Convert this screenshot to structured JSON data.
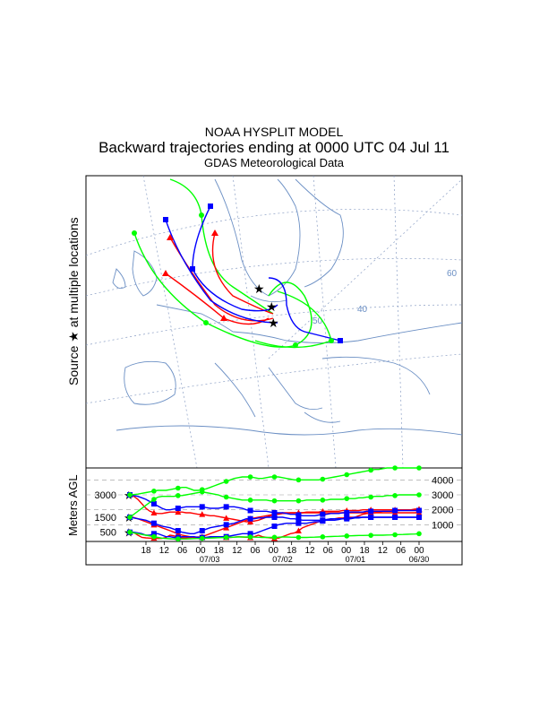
{
  "header": {
    "model": "NOAA HYSPLIT MODEL",
    "description": "Backward trajectories ending at 0000 UTC 04 Jul 11",
    "met_data": "GDAS Meteorological Data"
  },
  "side_label": {
    "text_before": "Source",
    "star_glyph": "★",
    "text_after": "at multiple locations"
  },
  "colors": {
    "red": "#ff0000",
    "blue": "#0000ff",
    "green": "#00ff00",
    "map": "#6b8fc4",
    "grid": "#8a9ec4"
  },
  "chart_data": {
    "type": "line",
    "title": "Backward trajectories ending at 0000 UTC 04 Jul 11",
    "ylabel": "Meters AGL",
    "ylim": [
      0,
      4800
    ],
    "y_ticks": [
      1000,
      2000,
      3000,
      4000
    ],
    "source_heights": [
      500,
      1500,
      3000
    ],
    "x_tick_labels": [
      "18",
      "12",
      "06",
      "00",
      "18",
      "12",
      "06",
      "00",
      "18",
      "12",
      "06",
      "00",
      "18",
      "12",
      "06",
      "00"
    ],
    "date_labels": [
      "07/03",
      "07/02",
      "07/01",
      "06/30"
    ],
    "map_grid_labels": [
      "50",
      "40",
      "60"
    ],
    "series": [
      {
        "name": "red-500m",
        "color": "red",
        "values": [
          500,
          480,
          300,
          150,
          120,
          100,
          110,
          80,
          90,
          150,
          300,
          260,
          150,
          120,
          130,
          150,
          160,
          180,
          150,
          120,
          140,
          160,
          180,
          200,
          160,
          150,
          170,
          200,
          180,
          160,
          150,
          200,
          300,
          200,
          150,
          120,
          100,
          100,
          200,
          300,
          400,
          450,
          600,
          800,
          900,
          1000,
          1100,
          1200,
          1300,
          1300,
          1350,
          1400,
          1450,
          1450,
          1500,
          1500,
          1500,
          1600,
          1700,
          1750,
          1800,
          1800,
          1850,
          1900,
          1900,
          1900,
          1950,
          1950,
          2000,
          2000,
          2000,
          2050,
          2050
        ]
      },
      {
        "name": "red-1500m",
        "color": "red",
        "values": [
          1500,
          1480,
          1400,
          1300,
          1200,
          1100,
          1000,
          900,
          800,
          700,
          600,
          500,
          400,
          300,
          250,
          200,
          150,
          150,
          200,
          300,
          400,
          500,
          600,
          700,
          800,
          900,
          1000,
          1100,
          1200,
          1300,
          1400,
          1450,
          1500,
          1550,
          1600,
          1650,
          1700,
          1700,
          1750,
          1750,
          1800,
          1800,
          1800,
          1800,
          1850,
          1850,
          1850,
          1850,
          1900,
          1900,
          1900,
          1900,
          1900,
          1950,
          1950,
          1950,
          1950,
          1950,
          2000,
          2000,
          2000,
          2000,
          2000,
          2000,
          2000,
          2000,
          2000,
          2000,
          2000,
          2000,
          2000,
          2000,
          2000
        ]
      },
      {
        "name": "red-3000m",
        "color": "red",
        "values": [
          3000,
          2900,
          2700,
          2400,
          2100,
          1900,
          1800,
          1750,
          1750,
          1800,
          1850,
          1850,
          1850,
          1850,
          1800,
          1800,
          1750,
          1700,
          1700,
          1650,
          1600,
          1600,
          1550,
          1500,
          1450,
          1400,
          1350,
          1300,
          1250,
          1200,
          1200,
          1250,
          1300,
          1400,
          1500,
          1600,
          1700,
          1750,
          1800,
          1800,
          1800,
          1800,
          1800,
          1800,
          1800,
          1800,
          1800,
          1800,
          1800,
          1800,
          1800,
          1800,
          1800,
          1800,
          1800,
          1800,
          1800,
          1800,
          1800,
          1800,
          1800,
          1800,
          1800,
          1800,
          1800,
          1800,
          1800,
          1800,
          1800,
          1800,
          1800,
          1800,
          1800
        ]
      },
      {
        "name": "blue-500m",
        "color": "blue",
        "values": [
          500,
          500,
          450,
          400,
          300,
          300,
          400,
          400,
          300,
          200,
          200,
          150,
          150,
          200,
          200,
          200,
          200,
          150,
          150,
          150,
          200,
          200,
          200,
          200,
          200,
          250,
          300,
          350,
          400,
          400,
          400,
          400,
          500,
          600,
          700,
          800,
          900,
          1000,
          1050,
          1100,
          1100,
          1100,
          1100,
          1100,
          1100,
          1150,
          1200,
          1200,
          1250,
          1300,
          1300,
          1300,
          1350,
          1400,
          1400,
          1400,
          1450,
          1450,
          1500,
          1500,
          1500,
          1500,
          1500,
          1500,
          1500,
          1500,
          1500,
          1500,
          1500,
          1500,
          1500,
          1500,
          1500
        ]
      },
      {
        "name": "blue-1500m",
        "color": "blue",
        "values": [
          1500,
          1450,
          1400,
          1350,
          1300,
          1200,
          1100,
          1000,
          900,
          850,
          800,
          700,
          600,
          500,
          450,
          400,
          400,
          500,
          600,
          700,
          800,
          850,
          900,
          950,
          1000,
          1050,
          1100,
          1200,
          1300,
          1400,
          1400,
          1400,
          1450,
          1450,
          1500,
          1500,
          1500,
          1500,
          1500,
          1450,
          1400,
          1400,
          1350,
          1300,
          1300,
          1300,
          1300,
          1300,
          1300,
          1350,
          1400,
          1400,
          1400,
          1400,
          1450,
          1450,
          1500,
          1500,
          1500,
          1500,
          1500,
          1500,
          1500,
          1500,
          1500,
          1500,
          1500,
          1500,
          1500,
          1500,
          1500,
          1500,
          1500
        ]
      },
      {
        "name": "blue-3000m",
        "color": "blue",
        "values": [
          3000,
          2950,
          2900,
          2800,
          2700,
          2550,
          2400,
          2250,
          2100,
          2000,
          2000,
          2050,
          2100,
          2150,
          2200,
          2200,
          2200,
          2200,
          2200,
          2150,
          2100,
          2100,
          2100,
          2150,
          2200,
          2200,
          2200,
          2150,
          2100,
          2000,
          1950,
          1900,
          1900,
          1900,
          1900,
          1850,
          1800,
          1800,
          1800,
          1750,
          1700,
          1700,
          1650,
          1600,
          1600,
          1600,
          1600,
          1650,
          1700,
          1700,
          1750,
          1750,
          1750,
          1800,
          1800,
          1850,
          1850,
          1850,
          1850,
          1900,
          1900,
          1900,
          1900,
          1900,
          1900,
          1900,
          1950,
          1950,
          1950,
          1950,
          1950,
          1950,
          1950
        ]
      },
      {
        "name": "green-500m",
        "color": "green",
        "values": [
          500,
          450,
          400,
          350,
          300,
          250,
          200,
          150,
          100,
          80,
          60,
          50,
          50,
          50,
          50,
          60,
          70,
          80,
          90,
          100,
          110,
          120,
          130,
          140,
          150,
          160,
          170,
          180,
          180,
          180,
          180,
          170,
          160,
          150,
          150,
          150,
          160,
          170,
          180,
          180,
          170,
          160,
          150,
          150,
          150,
          160,
          170,
          180,
          190,
          200,
          210,
          220,
          230,
          240,
          250,
          260,
          270,
          280,
          280,
          290,
          290,
          300,
          300,
          300,
          310,
          320,
          330,
          340,
          350,
          360,
          370,
          380,
          400
        ]
      },
      {
        "name": "green-1500m",
        "color": "green",
        "values": [
          1500,
          1700,
          1900,
          2100,
          2300,
          2500,
          2700,
          2850,
          2900,
          2900,
          2900,
          2900,
          2950,
          2950,
          3000,
          3050,
          3100,
          3150,
          3200,
          3150,
          3100,
          3050,
          3000,
          2900,
          2850,
          2800,
          2750,
          2700,
          2650,
          2650,
          2650,
          2650,
          2650,
          2650,
          2650,
          2600,
          2600,
          2600,
          2600,
          2600,
          2600,
          2600,
          2600,
          2600,
          2650,
          2650,
          2650,
          2650,
          2650,
          2650,
          2700,
          2700,
          2700,
          2700,
          2750,
          2750,
          2750,
          2800,
          2800,
          2850,
          2850,
          2900,
          2900,
          2900,
          2950,
          2950,
          2950,
          3000,
          3000,
          3000,
          3000,
          3000,
          3000
        ]
      },
      {
        "name": "green-3000m",
        "color": "green",
        "values": [
          3000,
          3020,
          3050,
          3100,
          3150,
          3200,
          3250,
          3300,
          3300,
          3300,
          3350,
          3400,
          3450,
          3500,
          3500,
          3400,
          3300,
          3300,
          3350,
          3400,
          3500,
          3600,
          3700,
          3800,
          3900,
          4000,
          4100,
          4150,
          4200,
          4200,
          4200,
          4150,
          4100,
          4100,
          4150,
          4200,
          4200,
          4200,
          4150,
          4100,
          4050,
          4000,
          4000,
          4000,
          4000,
          4000,
          4000,
          4000,
          4050,
          4100,
          4150,
          4200,
          4250,
          4300,
          4350,
          4400,
          4450,
          4500,
          4550,
          4600,
          4650,
          4700,
          4700,
          4750,
          4800,
          4800,
          4800,
          4800,
          4800,
          4800,
          4800,
          4800,
          4800
        ]
      }
    ]
  }
}
